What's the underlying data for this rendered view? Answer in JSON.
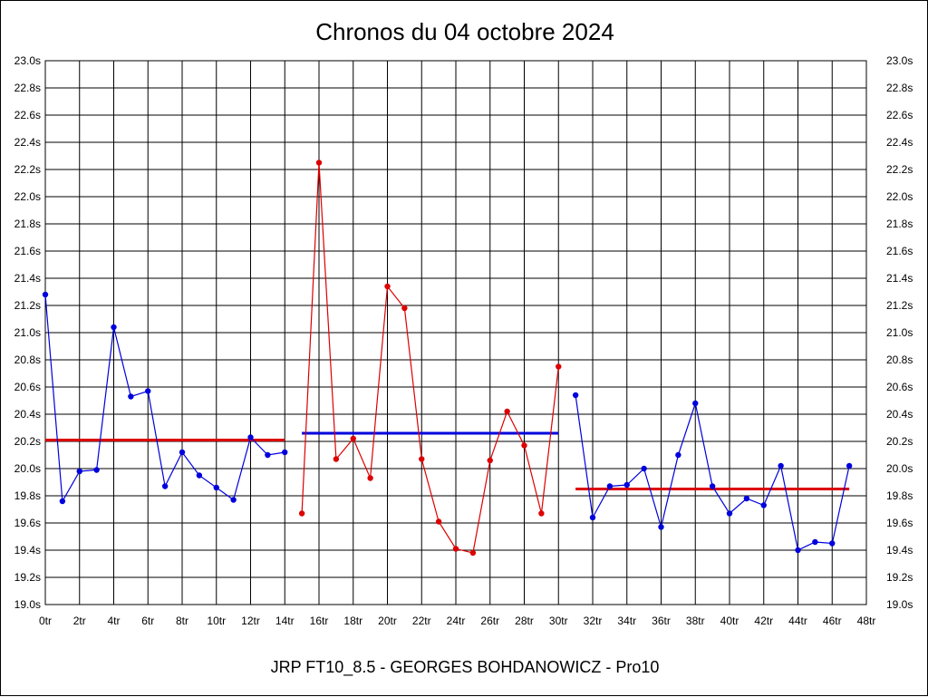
{
  "chart_data": {
    "type": "line",
    "title": "Chronos du 04 octobre 2024",
    "footer": "JRP FT10_8.5 - GEORGES BOHDANOWICZ - Pro10",
    "ylim": [
      19.0,
      23.0
    ],
    "xlim": [
      0,
      48
    ],
    "yticks": [
      "19.0s",
      "19.2s",
      "19.4s",
      "19.6s",
      "19.8s",
      "20.0s",
      "20.2s",
      "20.4s",
      "20.6s",
      "20.8s",
      "21.0s",
      "21.2s",
      "21.4s",
      "21.6s",
      "21.8s",
      "22.0s",
      "22.2s",
      "22.4s",
      "22.6s",
      "22.8s",
      "23.0s"
    ],
    "xticks": [
      "0tr",
      "2tr",
      "4tr",
      "6tr",
      "8tr",
      "10tr",
      "12tr",
      "14tr",
      "16tr",
      "18tr",
      "20tr",
      "22tr",
      "24tr",
      "26tr",
      "28tr",
      "30tr",
      "32tr",
      "34tr",
      "36tr",
      "38tr",
      "40tr",
      "42tr",
      "44tr",
      "46tr",
      "48tr"
    ],
    "grid": true,
    "colors": {
      "blue": "#0000dd",
      "red": "#dd0000"
    },
    "series": [
      {
        "color": "blue",
        "x": [
          0,
          1,
          2,
          3,
          4,
          5,
          6,
          7,
          8,
          9,
          10,
          11,
          12,
          13,
          14
        ],
        "y": [
          21.28,
          19.76,
          19.98,
          19.99,
          21.04,
          20.53,
          20.57,
          19.87,
          20.12,
          19.95,
          19.86,
          19.77,
          20.23,
          20.1,
          20.12
        ]
      },
      {
        "color": "red",
        "x": [
          15,
          16,
          17,
          18,
          19,
          20,
          21,
          22,
          23,
          24,
          25,
          26,
          27,
          28,
          29,
          30
        ],
        "y": [
          19.67,
          22.25,
          20.07,
          20.22,
          19.93,
          21.34,
          21.18,
          20.07,
          19.61,
          19.41,
          19.38,
          20.06,
          20.42,
          20.17,
          19.67,
          20.75
        ]
      },
      {
        "color": "blue",
        "x": [
          31,
          32,
          33,
          34,
          35,
          36,
          37,
          38,
          39,
          40,
          41,
          42,
          43,
          44,
          45,
          46,
          47
        ],
        "y": [
          20.54,
          19.64,
          19.87,
          19.88,
          20.0,
          19.57,
          20.1,
          20.48,
          19.87,
          19.67,
          19.78,
          19.73,
          20.02,
          19.4,
          19.46,
          19.45,
          20.02
        ]
      }
    ],
    "averages": [
      {
        "color": "red",
        "x": [
          0,
          14
        ],
        "y": 20.21
      },
      {
        "color": "blue",
        "x": [
          15,
          30
        ],
        "y": 20.26
      },
      {
        "color": "red",
        "x": [
          31,
          47
        ],
        "y": 19.85
      }
    ]
  }
}
